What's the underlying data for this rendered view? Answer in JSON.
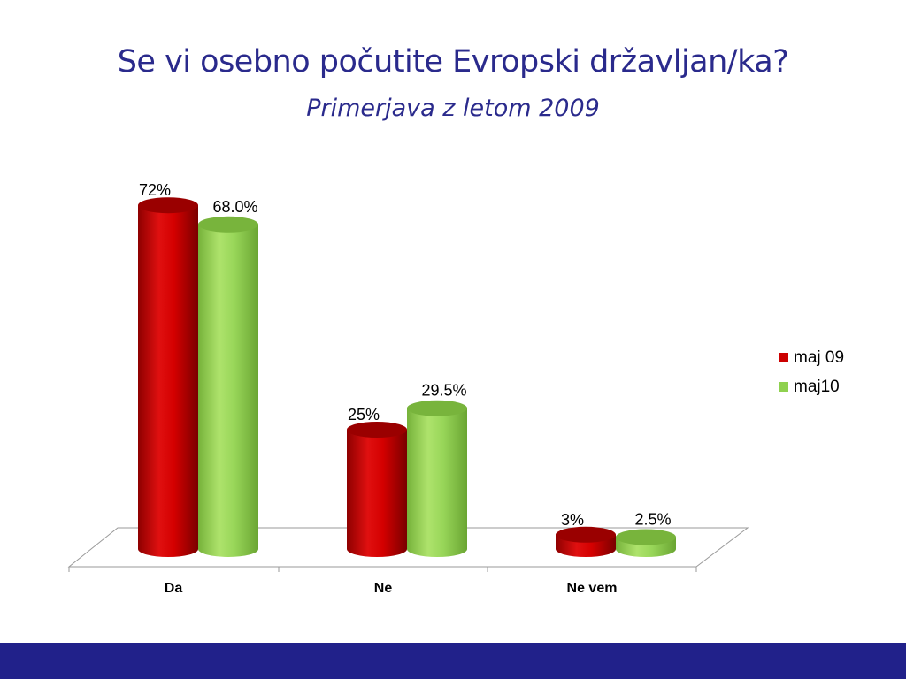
{
  "title": "Se vi osebno počutite Evropski državljan/ka?",
  "subtitle": "Primerjava z letom 2009",
  "colors": {
    "title": "#2a2a8c",
    "series_1": "#cc0000",
    "series_2": "#8fd14f",
    "footer": "#21218a"
  },
  "chart_data": {
    "type": "bar",
    "title": "Se vi osebno počutite Evropski državljan/ka?",
    "subtitle": "Primerjava z letom 2009",
    "categories": [
      "Da",
      "Ne",
      "Ne vem"
    ],
    "series": [
      {
        "name": "maj 09",
        "values": [
          72,
          25,
          3
        ],
        "labels": [
          "72%",
          "25%",
          "3%"
        ],
        "color": "#cc0000"
      },
      {
        "name": "maj10",
        "values": [
          68.0,
          29.5,
          2.5
        ],
        "labels": [
          "68.0%",
          "29.5%",
          "2.5%"
        ],
        "color": "#8fd14f"
      }
    ],
    "ylim": [
      0,
      80
    ],
    "grid": false,
    "legend_position": "right",
    "style": "3d-cylinder"
  }
}
